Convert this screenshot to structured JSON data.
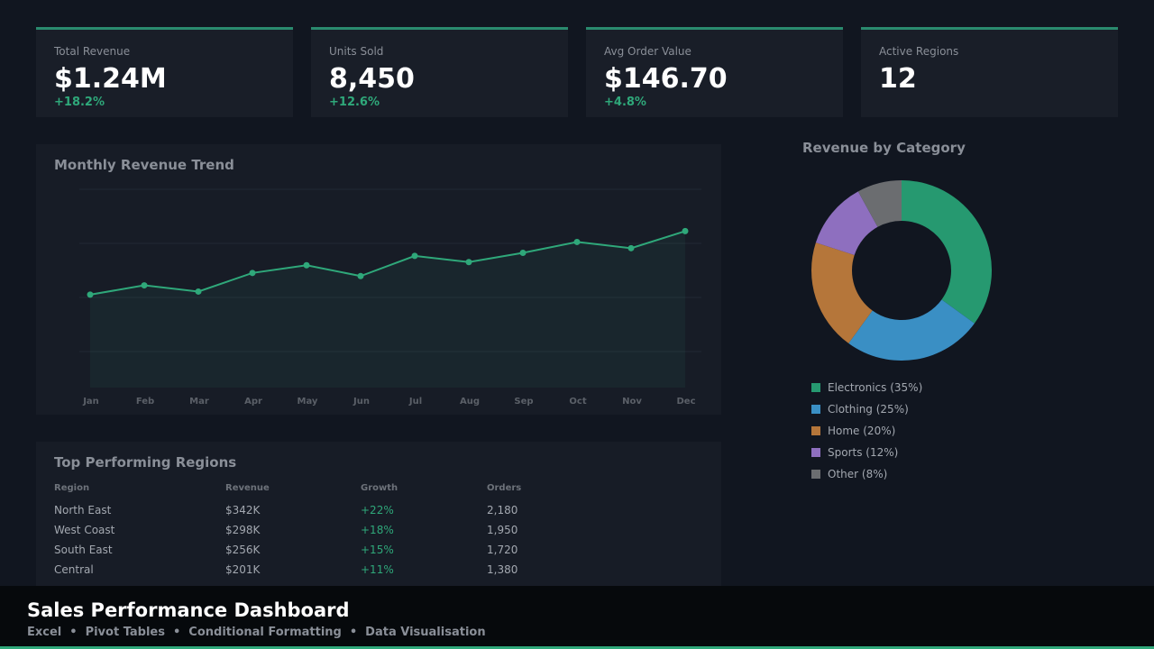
{
  "kpis": [
    {
      "label": "Total Revenue",
      "value": "$1.24M",
      "change": "+18.2%"
    },
    {
      "label": "Units Sold",
      "value": "8,450",
      "change": "+12.6%"
    },
    {
      "label": "Avg Order Value",
      "value": "$146.70",
      "change": "+4.8%"
    },
    {
      "label": "Active Regions",
      "value": "12",
      "change": ""
    }
  ],
  "colors": {
    "accent": "#2fa87a",
    "line": "#2fa87a",
    "electronics": "#269970",
    "clothing": "#3a8fc4",
    "home": "#b5763a",
    "sports": "#8e6fbf",
    "other": "#6b6d70"
  },
  "line_chart": {
    "title": "Monthly Revenue Trend",
    "chart_data": {
      "type": "area",
      "categories": [
        "Jan",
        "Feb",
        "Mar",
        "Apr",
        "May",
        "Jun",
        "Jul",
        "Aug",
        "Sep",
        "Oct",
        "Nov",
        "Dec"
      ],
      "values": [
        60,
        66,
        62,
        74,
        79,
        72,
        85,
        81,
        87,
        94,
        90,
        101
      ],
      "ylim": [
        0,
        128
      ],
      "grid": true
    }
  },
  "donut_chart": {
    "title": "Revenue by Category",
    "chart_data": {
      "type": "pie",
      "categories": [
        "Electronics",
        "Clothing",
        "Home",
        "Sports",
        "Other"
      ],
      "values": [
        35,
        25,
        20,
        12,
        8
      ],
      "labels": [
        "Electronics (35%)",
        "Clothing (25%)",
        "Home (20%)",
        "Sports (12%)",
        "Other (8%)"
      ]
    }
  },
  "regions": {
    "title": "Top Performing Regions",
    "columns": [
      "Region",
      "Revenue",
      "Growth",
      "Orders"
    ],
    "rows": [
      [
        "North East",
        "$342K",
        "+22%",
        "2,180"
      ],
      [
        "West Coast",
        "$298K",
        "+18%",
        "1,950"
      ],
      [
        "South East",
        "$256K",
        "+15%",
        "1,720"
      ],
      [
        "Central",
        "$201K",
        "+11%",
        "1,380"
      ]
    ]
  },
  "footer": {
    "title": "Sales Performance Dashboard",
    "tags": [
      "Excel",
      "Pivot Tables",
      "Conditional Formatting",
      "Data Visualisation"
    ],
    "separator": "•"
  }
}
